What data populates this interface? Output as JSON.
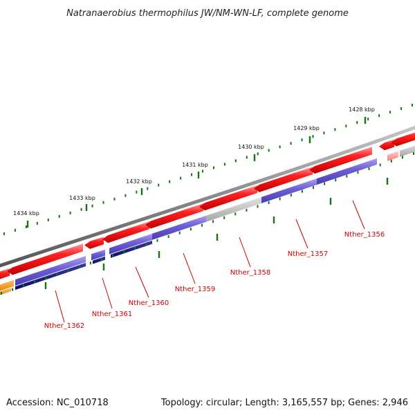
{
  "title": "Natranaerobius thermophilus JW/NM-WN-LF, complete genome",
  "footer": {
    "accession": "Accession: NC_010718",
    "summary": "Topology: circular; Length: 3,165,557 bp; Genes: 2,946"
  },
  "colors": {
    "forward_cds": "#ee1111",
    "backbone": "#777777",
    "cog_blue": "#6655cc",
    "cog_navy": "#111177",
    "cog_gray": "#bbbbbb",
    "cog_orange": "#ee8800",
    "tick_green": "#117711",
    "label_red": "#cc0000"
  },
  "kbp_ticks": [
    "1434 kbp",
    "1433 kbp",
    "1432 kbp",
    "1431 kbp",
    "1430 kbp",
    "1429 kbp",
    "1428 kbp"
  ],
  "gene_labels": [
    "Nther_1362",
    "Nther_1361",
    "Nther_1360",
    "Nther_1359",
    "Nther_1358",
    "Nther_1357",
    "Nther_1356"
  ]
}
